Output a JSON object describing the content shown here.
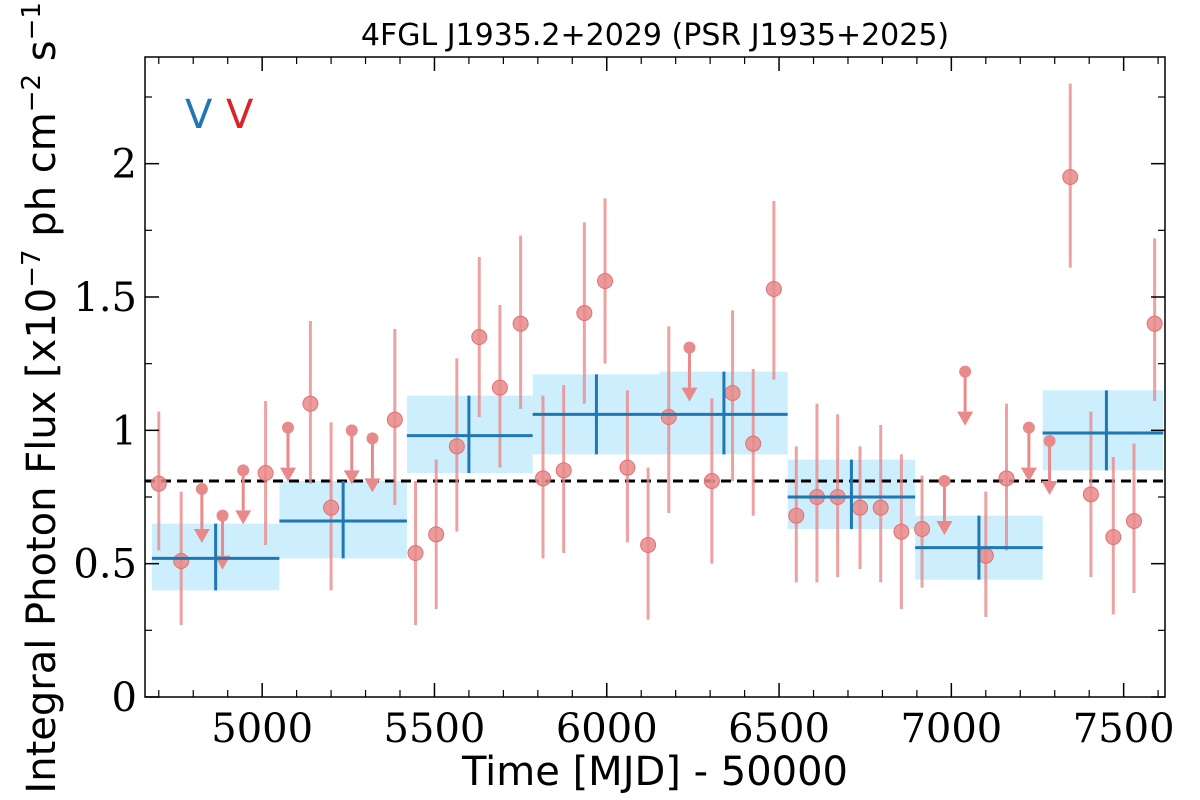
{
  "chart_data": {
    "type": "scatter",
    "title": "4FGL J1935.2+2029 (PSR J1935+2025)",
    "xlabel": "Time [MJD] - 50000",
    "ylabel": "Integral Photon Flux [x10",
    "ylabel_exp1": "−7",
    "ylabel_mid": " ph cm",
    "ylabel_exp2": "−2",
    "ylabel_end": " s",
    "ylabel_exp3": "−1",
    "ylabel_close": "]",
    "xlim": [
      4660,
      7620
    ],
    "ylim": [
      0,
      2.4
    ],
    "xticks": [
      5000,
      5500,
      6000,
      6500,
      7000,
      7500
    ],
    "xtick_labels": [
      "5000",
      "5500",
      "6000",
      "6500",
      "7000",
      "7500"
    ],
    "yticks": [
      0,
      0.5,
      1,
      1.5,
      2
    ],
    "ytick_labels": [
      "0",
      "0.5",
      "1",
      "1.5",
      "2"
    ],
    "x_minor_step": 100,
    "y_minor_step": 0.25,
    "grid": false,
    "legend": {
      "position": "top-left",
      "markers": [
        "V",
        "V"
      ],
      "colors": [
        "#1f77b4",
        "#d62728"
      ]
    },
    "mean_flux": 0.81,
    "colors": {
      "binned": "#1f77b4",
      "binned_box": "#cdeefc",
      "monthly": "#e88a8a",
      "mean_line": "#000000"
    },
    "series": [
      {
        "kind": "binned",
        "points": [
          {
            "x": 4865,
            "xlo": 4680,
            "xhi": 5050,
            "y": 0.52,
            "ylo": 0.4,
            "yhi": 0.65
          },
          {
            "x": 5235,
            "xlo": 5050,
            "xhi": 5420,
            "y": 0.66,
            "ylo": 0.52,
            "yhi": 0.81
          },
          {
            "x": 5600,
            "xlo": 5420,
            "xhi": 5785,
            "y": 0.98,
            "ylo": 0.84,
            "yhi": 1.13
          },
          {
            "x": 5970,
            "xlo": 5785,
            "xhi": 6155,
            "y": 1.06,
            "ylo": 0.91,
            "yhi": 1.21
          },
          {
            "x": 6340,
            "xlo": 6155,
            "xhi": 6525,
            "y": 1.06,
            "ylo": 0.91,
            "yhi": 1.22
          },
          {
            "x": 6710,
            "xlo": 6525,
            "xhi": 6895,
            "y": 0.75,
            "ylo": 0.63,
            "yhi": 0.89
          },
          {
            "x": 7080,
            "xlo": 6895,
            "xhi": 7265,
            "y": 0.56,
            "ylo": 0.44,
            "yhi": 0.68
          },
          {
            "x": 7450,
            "xlo": 7265,
            "xhi": 7640,
            "y": 0.99,
            "ylo": 0.85,
            "yhi": 1.15
          }
        ]
      },
      {
        "kind": "monthly",
        "points": [
          {
            "x": 4700,
            "y": 0.8,
            "ylo": 0.55,
            "yhi": 1.07
          },
          {
            "x": 4765,
            "y": 0.51,
            "ylo": 0.27,
            "yhi": 0.77
          },
          {
            "x": 4825,
            "y": 0.78,
            "ul": true
          },
          {
            "x": 4885,
            "y": 0.68,
            "ul": true
          },
          {
            "x": 4945,
            "y": 0.85,
            "ul": true
          },
          {
            "x": 5010,
            "y": 0.84,
            "ylo": 0.57,
            "yhi": 1.11
          },
          {
            "x": 5075,
            "y": 1.01,
            "ul": true
          },
          {
            "x": 5140,
            "y": 1.1,
            "ylo": 0.8,
            "yhi": 1.41
          },
          {
            "x": 5200,
            "y": 0.71,
            "ylo": 0.4,
            "yhi": 1.03
          },
          {
            "x": 5260,
            "y": 1.0,
            "ul": true
          },
          {
            "x": 5320,
            "y": 0.97,
            "ul": true
          },
          {
            "x": 5385,
            "y": 1.04,
            "ylo": 0.72,
            "yhi": 1.38
          },
          {
            "x": 5445,
            "y": 0.54,
            "ylo": 0.27,
            "yhi": 0.81
          },
          {
            "x": 5505,
            "y": 0.61,
            "ylo": 0.33,
            "yhi": 0.89
          },
          {
            "x": 5565,
            "y": 0.94,
            "ylo": 0.62,
            "yhi": 1.27
          },
          {
            "x": 5630,
            "y": 1.35,
            "ylo": 1.05,
            "yhi": 1.65
          },
          {
            "x": 5690,
            "y": 1.16,
            "ylo": 0.86,
            "yhi": 1.47
          },
          {
            "x": 5750,
            "y": 1.4,
            "ylo": 1.08,
            "yhi": 1.73
          },
          {
            "x": 5815,
            "y": 0.82,
            "ylo": 0.52,
            "yhi": 1.13
          },
          {
            "x": 5875,
            "y": 0.85,
            "ylo": 0.54,
            "yhi": 1.17
          },
          {
            "x": 5935,
            "y": 1.44,
            "ylo": 1.1,
            "yhi": 1.78
          },
          {
            "x": 5995,
            "y": 1.56,
            "ylo": 1.25,
            "yhi": 1.87
          },
          {
            "x": 6060,
            "y": 0.86,
            "ylo": 0.58,
            "yhi": 1.15
          },
          {
            "x": 6120,
            "y": 0.57,
            "ylo": 0.29,
            "yhi": 0.86
          },
          {
            "x": 6180,
            "y": 1.05,
            "ylo": 0.69,
            "yhi": 1.39
          },
          {
            "x": 6240,
            "y": 1.31,
            "ul": true
          },
          {
            "x": 6305,
            "y": 0.81,
            "ylo": 0.5,
            "yhi": 1.12
          },
          {
            "x": 6365,
            "y": 1.14,
            "ylo": 0.81,
            "yhi": 1.45
          },
          {
            "x": 6425,
            "y": 0.95,
            "ylo": 0.68,
            "yhi": 1.23
          },
          {
            "x": 6485,
            "y": 1.53,
            "ylo": 1.19,
            "yhi": 1.86
          },
          {
            "x": 6550,
            "y": 0.68,
            "ylo": 0.43,
            "yhi": 0.94
          },
          {
            "x": 6610,
            "y": 0.75,
            "ylo": 0.43,
            "yhi": 1.1
          },
          {
            "x": 6670,
            "y": 0.75,
            "ylo": 0.45,
            "yhi": 1.06
          },
          {
            "x": 6735,
            "y": 0.71,
            "ylo": 0.48,
            "yhi": 0.94
          },
          {
            "x": 6795,
            "y": 0.71,
            "ylo": 0.43,
            "yhi": 1.02
          },
          {
            "x": 6855,
            "y": 0.62,
            "ylo": 0.33,
            "yhi": 0.91
          },
          {
            "x": 6915,
            "y": 0.63,
            "ylo": 0.41,
            "yhi": 0.83
          },
          {
            "x": 6980,
            "y": 0.81,
            "ul": true
          },
          {
            "x": 7040,
            "y": 1.22,
            "ul": true
          },
          {
            "x": 7100,
            "y": 0.53,
            "ylo": 0.3,
            "yhi": 0.77
          },
          {
            "x": 7160,
            "y": 0.82,
            "ylo": 0.55,
            "yhi": 1.1
          },
          {
            "x": 7225,
            "y": 1.01,
            "ul": true
          },
          {
            "x": 7285,
            "y": 0.96,
            "ul": true
          },
          {
            "x": 7345,
            "y": 1.95,
            "ylo": 1.61,
            "yhi": 2.3
          },
          {
            "x": 7405,
            "y": 0.76,
            "ylo": 0.45,
            "yhi": 1.07
          },
          {
            "x": 7470,
            "y": 0.6,
            "ylo": 0.31,
            "yhi": 0.9
          },
          {
            "x": 7530,
            "y": 0.66,
            "ylo": 0.39,
            "yhi": 0.95
          },
          {
            "x": 7590,
            "y": 1.4,
            "ylo": 1.11,
            "yhi": 1.72
          }
        ]
      }
    ]
  }
}
